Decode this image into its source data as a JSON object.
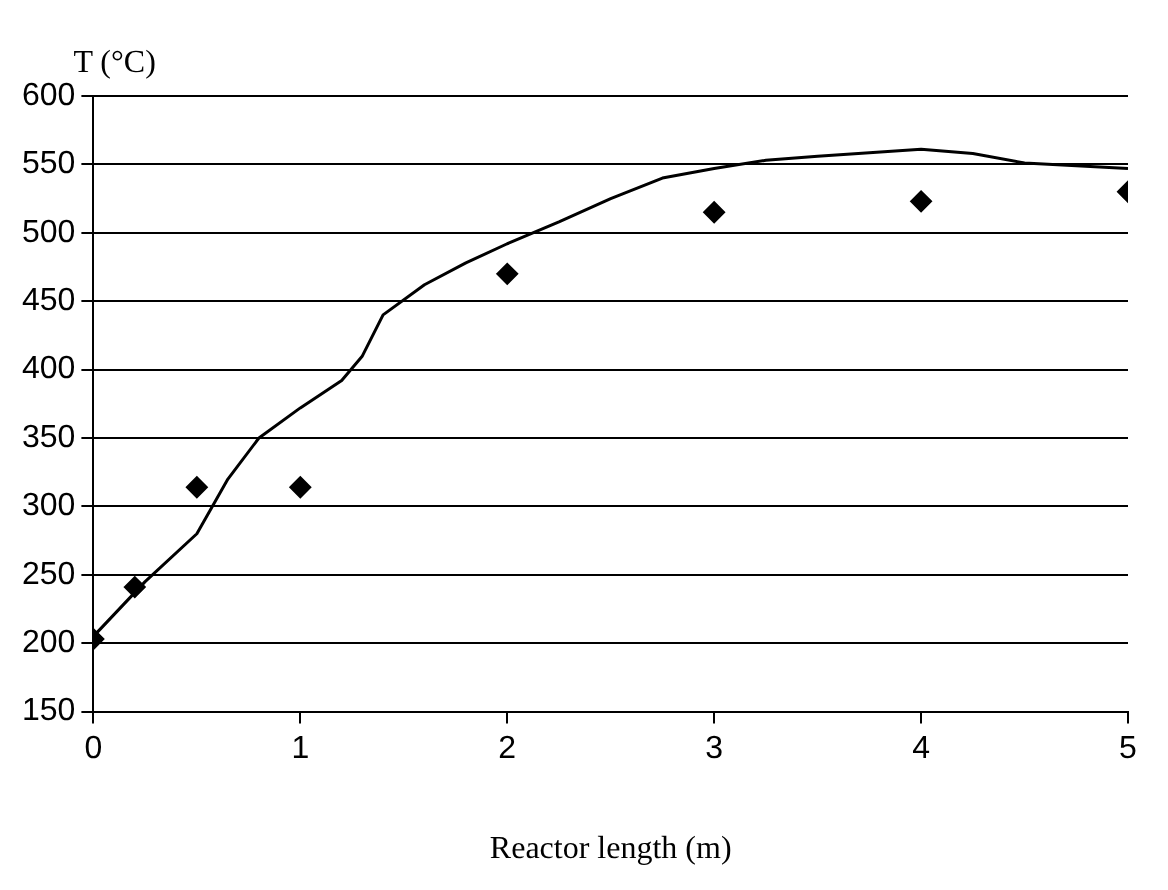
{
  "chart_data": {
    "type": "line",
    "ylabel": "T (°C)",
    "xlabel": "Reactor length (m)",
    "xlim": [
      0,
      5
    ],
    "xticks": [
      0,
      1,
      2,
      3,
      4,
      5
    ],
    "ylim": [
      150,
      600
    ],
    "yticks": [
      150,
      200,
      250,
      300,
      350,
      400,
      450,
      500,
      550,
      600
    ],
    "grid": "y",
    "series": [
      {
        "color": "#000000",
        "marker": "none",
        "line_style": "solid",
        "x": [
          0,
          0.25,
          0.5,
          0.65,
          0.8,
          1,
          1.2,
          1.3,
          1.4,
          1.6,
          1.8,
          2,
          2.25,
          2.5,
          2.75,
          3,
          3.25,
          3.5,
          4,
          4.25,
          4.5,
          5
        ],
        "values": [
          205,
          245,
          280,
          320,
          350,
          372,
          392,
          410,
          440,
          462,
          478,
          492,
          508,
          525,
          540,
          547,
          553,
          556,
          561,
          558,
          551,
          547
        ]
      },
      {
        "type": "scatter",
        "color": "#000000",
        "marker": "diamond",
        "x": [
          0,
          0.2,
          0.5,
          1,
          2,
          3,
          4,
          5
        ],
        "values": [
          203,
          241,
          314,
          314,
          470,
          515,
          523,
          530
        ]
      }
    ]
  }
}
